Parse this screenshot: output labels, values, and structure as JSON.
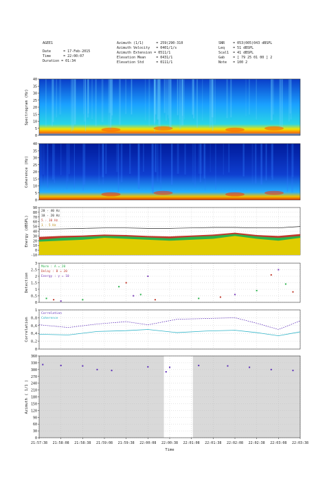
{
  "header": {
    "station": "AGEE1",
    "date": "Date      = 17-Feb-2015",
    "time": "Time      = 22:00:07",
    "duration": "Duration = 01:34",
    "azimuth": "Azimuth (1/1)      = 259(290-310",
    "az_velocity": "Azimuth Velocity   = 0401/1/s",
    "az_extension": "Azimuth Extension = 0511/1",
    "elev_mean": "Elevation Mean     = 0431/1",
    "elev_std": "Elevation Std      = 0111/1",
    "snr": "SNR    = 053(005)043 dBSPL",
    "leq": "Leq    = 51 dBSPL",
    "scal1": "Scal1  = 41 dBSPL",
    "gab": "Gab    = [ 79 25 01 00 ] 2",
    "note": "Note   = 100 2"
  },
  "time_axis": {
    "label": "Time",
    "ticks": [
      "21:57:38",
      "21:58:08",
      "21:58:38",
      "21:59:08",
      "21:59:38",
      "22:00:08",
      "22:00:38",
      "22:01:08",
      "22:01:38",
      "22:02:08",
      "22:02:38",
      "22:03:08",
      "22:03:38"
    ]
  },
  "panels": {
    "spectrogram": {
      "ylabel": "Spectrogram (Hz)",
      "yticks": [
        "0",
        "5",
        "10",
        "15",
        "20",
        "25",
        "30",
        "35",
        "40"
      ]
    },
    "coherence": {
      "ylabel": "Coherence (Hz)",
      "yticks": [
        "0",
        "5",
        "10",
        "15",
        "20",
        "25",
        "30",
        "35",
        "40"
      ]
    },
    "energy": {
      "ylabel": "Energy (dBSPL)",
      "yticks": [
        "-10",
        "0",
        "10",
        "20",
        "30",
        "40",
        "50",
        "60",
        "70",
        "80",
        "90"
      ],
      "legend": [
        "20 - 40 Hz",
        "10 - 20 Hz",
        "5 - 10 Hz",
        "1 - 5 Hz"
      ]
    },
    "detection": {
      "ylabel": "Detection",
      "yticks": [
        "0",
        "0,5",
        "1",
        "1,5",
        "2",
        "2,5",
        "3"
      ],
      "legend": [
        "Marm  : A = 20",
        "Delay : B = 20",
        "Energy : γ = 10"
      ]
    },
    "correlation": {
      "ylabel": "Correlation",
      "yticks": [
        "0",
        "0,2",
        "0,4",
        "0,6",
        "0,8",
        "1"
      ],
      "legend": [
        "Correlation",
        "Coherence"
      ]
    },
    "azimuth": {
      "ylabel": "Azimuth ( 1/1 )",
      "yticks": [
        "0",
        "30",
        "60",
        "90",
        "120",
        "150",
        "180",
        "210",
        "240",
        "270",
        "300",
        "330",
        "360"
      ]
    }
  },
  "chart_data": [
    {
      "type": "heatmap",
      "ylabel": "Spectrogram (Hz)",
      "ylim": [
        0,
        40
      ],
      "xlim": [
        "21:57:38",
        "22:03:38"
      ]
    },
    {
      "type": "heatmap",
      "ylabel": "Coherence (Hz)",
      "ylim": [
        0,
        40
      ],
      "xlim": [
        "21:57:38",
        "22:03:38"
      ]
    },
    {
      "type": "area",
      "ylabel": "Energy (dBSPL)",
      "ylim": [
        -10,
        90
      ],
      "x_seconds": [
        0,
        30,
        60,
        90,
        120,
        150,
        180,
        210,
        240,
        270,
        300,
        330,
        360
      ],
      "series": [
        {
          "name": "20 - 40 Hz",
          "values": [
            44,
            45,
            46,
            47,
            47,
            46,
            46,
            47,
            48,
            48,
            47,
            47,
            50
          ]
        },
        {
          "name": "10 - 20 Hz",
          "values": [
            28,
            30,
            31,
            33,
            32,
            30,
            29,
            31,
            33,
            37,
            32,
            30,
            34
          ]
        },
        {
          "name": "5 - 10 Hz",
          "values": [
            22,
            26,
            28,
            30,
            29,
            27,
            25,
            28,
            30,
            34,
            29,
            26,
            30
          ]
        },
        {
          "name": "1 - 5 Hz",
          "values": [
            18,
            20,
            22,
            26,
            24,
            22,
            20,
            22,
            24,
            30,
            24,
            20,
            26
          ]
        }
      ]
    },
    {
      "type": "scatter",
      "ylabel": "Detection",
      "ylim": [
        0,
        3
      ],
      "series": [
        {
          "name": "Marm  : A = 20",
          "values": [
            [
              10,
              0.3
            ],
            [
              60,
              0.2
            ],
            [
              110,
              1.2
            ],
            [
              140,
              0.6
            ],
            [
              220,
              0.3
            ],
            [
              300,
              0.9
            ],
            [
              340,
              1.4
            ]
          ]
        },
        {
          "name": "Delay : B = 20",
          "values": [
            [
              20,
              0.2
            ],
            [
              120,
              1.5
            ],
            [
              160,
              0.2
            ],
            [
              250,
              0.4
            ],
            [
              320,
              2.1
            ],
            [
              350,
              0.8
            ]
          ]
        },
        {
          "name": "Energy : γ = 10",
          "values": [
            [
              30,
              0.1
            ],
            [
              130,
              0.5
            ],
            [
              150,
              2.0
            ],
            [
              270,
              0.6
            ],
            [
              330,
              2.5
            ]
          ]
        }
      ]
    },
    {
      "type": "line",
      "ylabel": "Correlation",
      "ylim": [
        0,
        1
      ],
      "series": [
        {
          "name": "Correlation",
          "values": [
            [
              0,
              0.62
            ],
            [
              40,
              0.55
            ],
            [
              80,
              0.64
            ],
            [
              120,
              0.7
            ],
            [
              150,
              0.62
            ],
            [
              190,
              0.76
            ],
            [
              230,
              0.78
            ],
            [
              270,
              0.8
            ],
            [
              300,
              0.66
            ],
            [
              330,
              0.5
            ],
            [
              360,
              0.72
            ]
          ]
        },
        {
          "name": "Coherence",
          "values": [
            [
              0,
              0.38
            ],
            [
              40,
              0.36
            ],
            [
              80,
              0.45
            ],
            [
              120,
              0.47
            ],
            [
              150,
              0.5
            ],
            [
              190,
              0.42
            ],
            [
              230,
              0.46
            ],
            [
              270,
              0.48
            ],
            [
              300,
              0.42
            ],
            [
              330,
              0.34
            ],
            [
              360,
              0.44
            ]
          ]
        }
      ]
    },
    {
      "type": "scatter",
      "ylabel": "Azimuth ( 1/1 )",
      "ylim": [
        0,
        360
      ],
      "values": [
        [
          5,
          322
        ],
        [
          30,
          318
        ],
        [
          60,
          316
        ],
        [
          80,
          300
        ],
        [
          100,
          296
        ],
        [
          150,
          312
        ],
        [
          175,
          290
        ],
        [
          180,
          310
        ],
        [
          220,
          318
        ],
        [
          260,
          316
        ],
        [
          290,
          310
        ],
        [
          320,
          300
        ],
        [
          350,
          296
        ]
      ]
    }
  ]
}
